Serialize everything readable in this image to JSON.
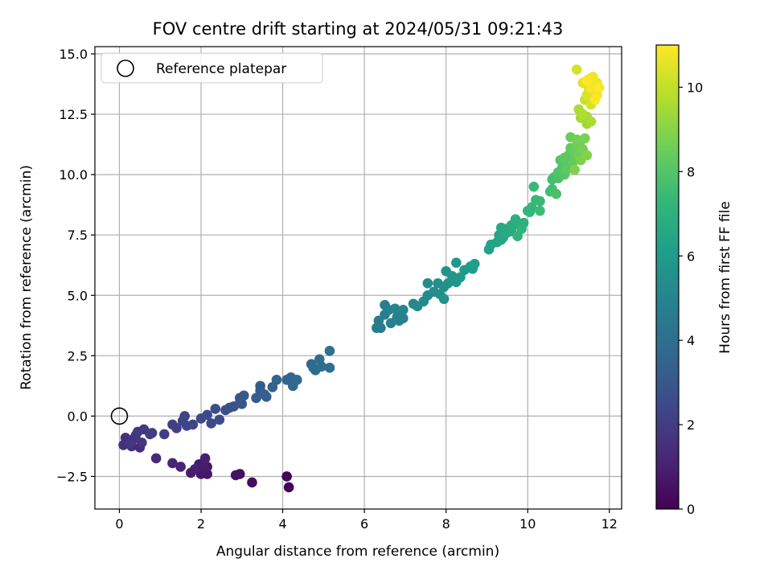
{
  "chart_data": {
    "type": "scatter",
    "title": "FOV centre drift starting at 2024/05/31 09:21:43",
    "xlabel": "Angular distance from reference (arcmin)",
    "ylabel": "Rotation from reference (arcmin)",
    "xlim": [
      -0.6,
      12.3
    ],
    "ylim": [
      -3.85,
      15.3
    ],
    "xticks": [
      0,
      2,
      4,
      6,
      8,
      10,
      12
    ],
    "xtick_labels": [
      "0",
      "2",
      "4",
      "6",
      "8",
      "10",
      "12"
    ],
    "yticks": [
      -2.5,
      0.0,
      2.5,
      5.0,
      7.5,
      10.0,
      12.5,
      15.0
    ],
    "ytick_labels": [
      "−2.5",
      "0.0",
      "2.5",
      "5.0",
      "7.5",
      "10.0",
      "12.5",
      "15.0"
    ],
    "grid": true,
    "legend": {
      "placement": "top-left",
      "entries": [
        "Reference platepar"
      ]
    },
    "reference_point": {
      "x": 0,
      "y": 0
    },
    "colorbar": {
      "label": "Hours from first FF file",
      "range": [
        0,
        11
      ],
      "ticks": [
        0,
        2,
        4,
        6,
        8,
        10
      ],
      "tick_labels": [
        "0",
        "2",
        "4",
        "6",
        "8",
        "10"
      ],
      "colormap": "viridis",
      "colormap_stops": [
        "#440154",
        "#482878",
        "#3e4989",
        "#31688e",
        "#26828e",
        "#1f9e89",
        "#35b779",
        "#6ece58",
        "#b5de2b",
        "#fde725"
      ]
    },
    "points": [
      [
        4.15,
        -2.95,
        0.05
      ],
      [
        4.1,
        -2.5,
        0.15
      ],
      [
        3.25,
        -2.75,
        0.3
      ],
      [
        2.95,
        -2.4,
        0.45
      ],
      [
        2.85,
        -2.45,
        0.55
      ],
      [
        2.15,
        -2.4,
        0.65
      ],
      [
        2.0,
        -2.4,
        0.7
      ],
      [
        2.05,
        -2.2,
        0.75
      ],
      [
        2.15,
        -2.1,
        0.8
      ],
      [
        1.95,
        -2.0,
        0.85
      ],
      [
        1.75,
        -2.35,
        0.9
      ],
      [
        1.85,
        -2.2,
        0.95
      ],
      [
        2.1,
        -1.75,
        1.0
      ],
      [
        1.5,
        -2.1,
        1.1
      ],
      [
        1.3,
        -1.95,
        1.15
      ],
      [
        0.9,
        -1.75,
        1.25
      ],
      [
        0.5,
        -1.3,
        1.35
      ],
      [
        0.3,
        -1.25,
        1.45
      ],
      [
        0.1,
        -1.2,
        1.5
      ],
      [
        0.2,
        -1.0,
        1.55
      ],
      [
        0.15,
        -0.9,
        1.6
      ],
      [
        0.35,
        -0.95,
        1.65
      ],
      [
        0.4,
        -0.8,
        1.7
      ],
      [
        0.55,
        -1.1,
        1.75
      ],
      [
        0.25,
        -1.15,
        1.8
      ],
      [
        0.45,
        -0.65,
        1.85
      ],
      [
        0.6,
        -0.55,
        1.9
      ],
      [
        0.8,
        -0.7,
        1.95
      ],
      [
        0.75,
        -0.75,
        2.0
      ],
      [
        1.1,
        -0.75,
        2.05
      ],
      [
        1.3,
        -0.35,
        2.1
      ],
      [
        1.4,
        -0.5,
        2.15
      ],
      [
        1.55,
        -0.2,
        2.2
      ],
      [
        1.6,
        0.0,
        2.25
      ],
      [
        1.65,
        -0.4,
        2.3
      ],
      [
        1.8,
        -0.35,
        2.35
      ],
      [
        2.0,
        -0.1,
        2.4
      ],
      [
        2.15,
        0.05,
        2.45
      ],
      [
        2.25,
        -0.3,
        2.5
      ],
      [
        2.45,
        -0.15,
        2.55
      ],
      [
        2.35,
        0.3,
        2.6
      ],
      [
        2.6,
        0.25,
        2.7
      ],
      [
        2.7,
        0.35,
        2.75
      ],
      [
        2.8,
        0.4,
        2.8
      ],
      [
        2.95,
        0.75,
        2.9
      ],
      [
        2.95,
        0.55,
        2.95
      ],
      [
        3.05,
        0.85,
        3.0
      ],
      [
        3.0,
        0.5,
        3.05
      ],
      [
        3.35,
        0.75,
        3.15
      ],
      [
        3.45,
        1.05,
        3.2
      ],
      [
        3.45,
        1.25,
        3.25
      ],
      [
        3.55,
        0.9,
        3.3
      ],
      [
        3.6,
        0.8,
        3.35
      ],
      [
        3.75,
        1.2,
        3.4
      ],
      [
        3.85,
        1.5,
        3.45
      ],
      [
        4.1,
        1.5,
        3.55
      ],
      [
        4.2,
        1.6,
        3.6
      ],
      [
        4.25,
        1.25,
        3.65
      ],
      [
        4.35,
        1.5,
        3.7
      ],
      [
        4.7,
        2.15,
        3.8
      ],
      [
        4.8,
        1.9,
        3.85
      ],
      [
        4.75,
        2.0,
        3.9
      ],
      [
        4.95,
        2.05,
        3.95
      ],
      [
        4.9,
        2.35,
        4.0
      ],
      [
        5.15,
        2.7,
        4.05
      ],
      [
        5.15,
        2.0,
        4.1
      ],
      [
        6.3,
        3.65,
        4.5
      ],
      [
        6.4,
        3.65,
        4.55
      ],
      [
        6.35,
        3.95,
        4.6
      ],
      [
        6.5,
        4.2,
        4.65
      ],
      [
        6.5,
        4.6,
        4.7
      ],
      [
        6.6,
        4.4,
        4.75
      ],
      [
        6.65,
        3.85,
        4.8
      ],
      [
        6.8,
        4.1,
        4.85
      ],
      [
        6.85,
        3.95,
        4.9
      ],
      [
        6.95,
        4.05,
        4.95
      ],
      [
        6.75,
        4.45,
        5.0
      ],
      [
        6.95,
        4.4,
        5.05
      ],
      [
        7.2,
        4.65,
        5.15
      ],
      [
        7.3,
        4.55,
        5.2
      ],
      [
        7.45,
        4.75,
        5.25
      ],
      [
        7.55,
        5.0,
        5.3
      ],
      [
        7.55,
        5.5,
        5.35
      ],
      [
        7.7,
        5.15,
        5.4
      ],
      [
        7.85,
        5.05,
        5.45
      ],
      [
        7.8,
        5.5,
        5.5
      ],
      [
        7.95,
        5.35,
        5.55
      ],
      [
        7.95,
        4.85,
        5.6
      ],
      [
        8.05,
        5.5,
        5.65
      ],
      [
        8.0,
        6.0,
        5.7
      ],
      [
        8.15,
        5.8,
        5.75
      ],
      [
        8.25,
        5.55,
        5.8
      ],
      [
        8.35,
        5.75,
        5.85
      ],
      [
        8.25,
        6.35,
        5.9
      ],
      [
        8.45,
        6.05,
        5.95
      ],
      [
        8.6,
        6.2,
        6.0
      ],
      [
        8.65,
        6.1,
        6.05
      ],
      [
        8.7,
        6.3,
        6.1
      ],
      [
        9.05,
        6.9,
        6.3
      ],
      [
        9.1,
        7.1,
        6.35
      ],
      [
        9.25,
        7.2,
        6.4
      ],
      [
        9.3,
        7.5,
        6.45
      ],
      [
        9.35,
        7.3,
        6.5
      ],
      [
        9.4,
        7.4,
        6.55
      ],
      [
        9.35,
        7.8,
        6.6
      ],
      [
        9.45,
        7.75,
        6.65
      ],
      [
        9.5,
        7.6,
        6.7
      ],
      [
        9.6,
        7.9,
        6.75
      ],
      [
        9.6,
        7.65,
        6.8
      ],
      [
        9.7,
        7.95,
        6.85
      ],
      [
        9.7,
        8.15,
        6.9
      ],
      [
        9.85,
        7.95,
        6.95
      ],
      [
        9.9,
        8.0,
        7.0
      ],
      [
        9.75,
        7.45,
        7.05
      ],
      [
        9.85,
        7.75,
        7.1
      ],
      [
        10.0,
        8.5,
        7.2
      ],
      [
        10.1,
        8.65,
        7.25
      ],
      [
        10.05,
        8.45,
        7.3
      ],
      [
        10.2,
        8.95,
        7.35
      ],
      [
        10.3,
        8.9,
        7.4
      ],
      [
        10.15,
        9.5,
        7.45
      ],
      [
        10.3,
        8.5,
        7.5
      ],
      [
        10.55,
        9.3,
        7.6
      ],
      [
        10.6,
        9.8,
        7.65
      ],
      [
        10.6,
        9.4,
        7.7
      ],
      [
        10.65,
        9.9,
        7.75
      ],
      [
        10.7,
        9.2,
        7.8
      ],
      [
        10.75,
        9.85,
        7.85
      ],
      [
        10.75,
        10.1,
        7.9
      ],
      [
        10.85,
        10.3,
        7.95
      ],
      [
        10.8,
        10.6,
        8.0
      ],
      [
        10.9,
        10.0,
        8.05
      ],
      [
        10.95,
        10.55,
        8.1
      ],
      [
        11.0,
        10.8,
        8.15
      ],
      [
        10.9,
        10.7,
        8.2
      ],
      [
        10.95,
        10.2,
        8.25
      ],
      [
        11.05,
        11.1,
        8.3
      ],
      [
        11.1,
        10.5,
        8.35
      ],
      [
        11.15,
        10.9,
        8.4
      ],
      [
        11.05,
        11.55,
        8.45
      ],
      [
        11.2,
        11.2,
        8.5
      ],
      [
        11.25,
        10.8,
        8.55
      ],
      [
        11.3,
        11.4,
        8.6
      ],
      [
        11.2,
        11.45,
        8.65
      ],
      [
        11.35,
        11.05,
        8.7
      ],
      [
        11.4,
        11.5,
        8.75
      ],
      [
        11.3,
        10.6,
        8.8
      ],
      [
        11.15,
        10.2,
        8.85
      ],
      [
        11.45,
        10.8,
        8.9
      ],
      [
        11.45,
        12.1,
        9.4
      ],
      [
        11.3,
        12.35,
        9.45
      ],
      [
        11.45,
        12.4,
        9.5
      ],
      [
        11.55,
        12.2,
        9.55
      ],
      [
        11.25,
        12.7,
        9.6
      ],
      [
        11.35,
        12.5,
        9.7
      ],
      [
        11.4,
        13.1,
        10.1
      ],
      [
        11.2,
        14.35,
        10.3
      ],
      [
        11.55,
        12.9,
        10.35
      ],
      [
        11.45,
        13.3,
        10.4
      ],
      [
        11.5,
        13.55,
        10.45
      ],
      [
        11.35,
        13.8,
        10.5
      ],
      [
        11.6,
        13.4,
        10.55
      ],
      [
        11.5,
        13.95,
        10.6
      ],
      [
        11.65,
        13.7,
        10.65
      ],
      [
        11.55,
        14.0,
        10.7
      ],
      [
        11.7,
        13.8,
        10.75
      ],
      [
        11.6,
        14.05,
        10.8
      ],
      [
        11.7,
        13.3,
        10.85
      ],
      [
        11.55,
        13.6,
        10.9
      ],
      [
        11.75,
        13.6,
        10.95
      ],
      [
        11.45,
        13.9,
        11.0
      ],
      [
        11.65,
        13.1,
        11.0
      ]
    ]
  }
}
